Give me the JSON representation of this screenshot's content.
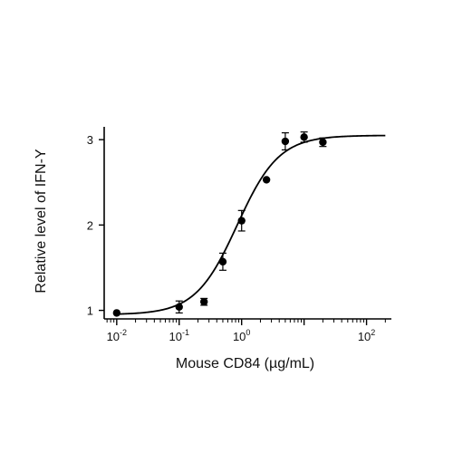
{
  "chart_data": {
    "type": "scatter",
    "title": "",
    "xlabel": "Mouse CD84 (µg/mL)",
    "ylabel": "Relative level of IFN-Y",
    "x_scale": "log",
    "xlim": [
      0.0063,
      250
    ],
    "ylim": [
      0.9,
      3.15
    ],
    "x_ticks": [
      {
        "value": 0.01,
        "base": "10",
        "exp": "-2"
      },
      {
        "value": 0.1,
        "base": "10",
        "exp": "-1"
      },
      {
        "value": 1,
        "base": "10",
        "exp": "0"
      },
      {
        "value": 100,
        "base": "10",
        "exp": "2"
      }
    ],
    "y_ticks": [
      {
        "value": 1,
        "label": "1"
      },
      {
        "value": 2,
        "label": "2"
      },
      {
        "value": 3,
        "label": "3"
      }
    ],
    "grid": false,
    "legend": false,
    "series": [
      {
        "points": [
          {
            "x": 0.01,
            "y": 0.97,
            "err": 0
          },
          {
            "x": 0.1,
            "y": 1.04,
            "err": 0.07
          },
          {
            "x": 0.25,
            "y": 1.1,
            "err": 0.04
          },
          {
            "x": 0.5,
            "y": 1.57,
            "err": 0.1
          },
          {
            "x": 1,
            "y": 2.05,
            "err": 0.12
          },
          {
            "x": 2.5,
            "y": 2.53,
            "err": 0
          },
          {
            "x": 5,
            "y": 2.98,
            "err": 0.1
          },
          {
            "x": 10,
            "y": 3.03,
            "err": 0.06
          },
          {
            "x": 20,
            "y": 2.97,
            "err": 0.05
          }
        ]
      }
    ],
    "fit": {
      "model": "4PL",
      "bottom": 0.95,
      "top": 3.05,
      "ec50": 0.85,
      "hill": 1.3,
      "x_range": [
        0.01,
        200
      ]
    }
  }
}
